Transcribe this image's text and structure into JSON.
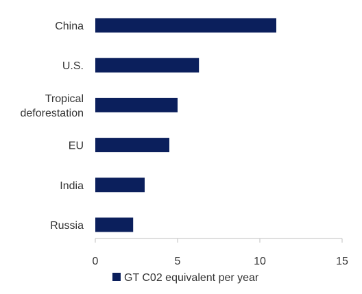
{
  "chart_data": {
    "type": "bar",
    "orientation": "horizontal",
    "categories": [
      [
        "China"
      ],
      [
        "U.S."
      ],
      [
        "Tropical",
        "deforestation"
      ],
      [
        "EU"
      ],
      [
        "India"
      ],
      [
        "Russia"
      ]
    ],
    "series": [
      {
        "name": "GT C02 equivalent per year",
        "values": [
          11.0,
          6.3,
          5.0,
          4.5,
          3.0,
          2.3
        ],
        "color": "#0b1f5c"
      }
    ],
    "xlim": [
      0,
      15
    ],
    "xticks": [
      0,
      5,
      10,
      15
    ],
    "grid": false,
    "legend_position": "bottom",
    "colors": {
      "bar": "#0b1f5c",
      "axis": "#bfbfbf",
      "text": "#333333"
    }
  }
}
